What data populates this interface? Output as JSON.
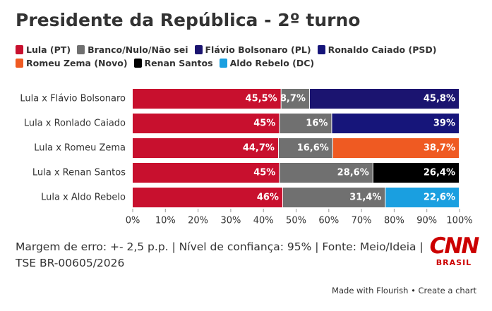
{
  "chart_data": {
    "type": "stacked-bar-horizontal",
    "title": "Presidente da República - 2º turno",
    "categories": [
      "Lula x Flávio Bolsonaro",
      "Lula x Ronlado Caiado",
      "Lula x Romeu Zema",
      "Lula x Renan Santos",
      "Lula x Aldo Rebelo"
    ],
    "series": [
      {
        "name": "Lula (PT)",
        "color": "#c8102e",
        "values": [
          45.5,
          45,
          44.7,
          45,
          46
        ],
        "value_labels": [
          "45,5%",
          "45%",
          "44,7%",
          "45%",
          "46%"
        ]
      },
      {
        "name": "Branco/Nulo/Não sei",
        "color": "#707070",
        "values": [
          8.7,
          16,
          16.6,
          28.6,
          31.4
        ],
        "value_labels": [
          "8,7%",
          "16%",
          "16,6%",
          "28,6%",
          "31,4%"
        ]
      },
      {
        "name": "Flávio Bolsonaro (PL)",
        "color": "#1b1470",
        "values": [
          45.8,
          null,
          null,
          null,
          null
        ],
        "value_labels": [
          "45,8%",
          null,
          null,
          null,
          null
        ]
      },
      {
        "name": "Ronaldo Caiado (PSD)",
        "color": "#16157a",
        "values": [
          null,
          39,
          null,
          null,
          null
        ],
        "value_labels": [
          null,
          "39%",
          null,
          null,
          null
        ]
      },
      {
        "name": "Romeu Zema (Novo)",
        "color": "#ef5a22",
        "values": [
          null,
          null,
          38.7,
          null,
          null
        ],
        "value_labels": [
          null,
          null,
          "38,7%",
          null,
          null
        ]
      },
      {
        "name": "Renan Santos",
        "color": "#000000",
        "values": [
          null,
          null,
          null,
          26.4,
          null
        ],
        "value_labels": [
          null,
          null,
          null,
          "26,4%",
          null
        ]
      },
      {
        "name": "Aldo Rebelo (DC)",
        "color": "#1a9fe0",
        "values": [
          null,
          null,
          null,
          null,
          22.6
        ],
        "value_labels": [
          null,
          null,
          null,
          null,
          "22,6%"
        ]
      }
    ],
    "xlim": [
      0,
      100
    ],
    "xticks": [
      {
        "value": 0,
        "label": "0%"
      },
      {
        "value": 10,
        "label": "10%"
      },
      {
        "value": 20,
        "label": "20%"
      },
      {
        "value": 30,
        "label": "30%"
      },
      {
        "value": 40,
        "label": "40%"
      },
      {
        "value": 50,
        "label": "50%"
      },
      {
        "value": 60,
        "label": "60%"
      },
      {
        "value": 70,
        "label": "70%"
      },
      {
        "value": 80,
        "label": "80%"
      },
      {
        "value": 90,
        "label": "90%"
      },
      {
        "value": 100,
        "label": "100%"
      }
    ],
    "note": "Margem de erro: +- 2,5 p.p. | Nível de confiança: 95% | Fonte: Meio/Ideia | TSE BR-00605/2026",
    "logo": {
      "brand": "CNN",
      "region": "BRASIL"
    },
    "credit": "Made with Flourish • Create a chart"
  }
}
